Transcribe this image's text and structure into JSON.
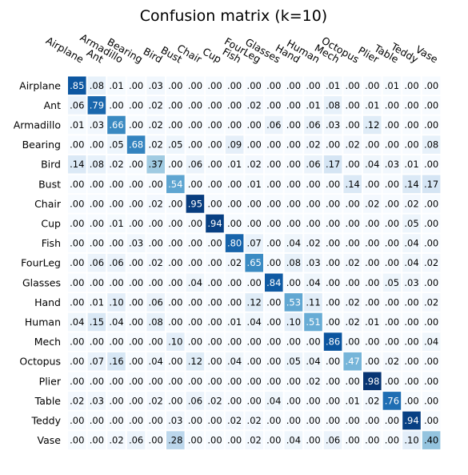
{
  "chart_data": {
    "type": "heatmap",
    "title": "Confusion matrix (k=10)",
    "xlabel": "",
    "ylabel": "",
    "labels": [
      "Airplane",
      "Ant",
      "Armadillo",
      "Bearing",
      "Bird",
      "Bust",
      "Chair",
      "Cup",
      "Fish",
      "FourLeg",
      "Glasses",
      "Hand",
      "Human",
      "Mech",
      "Octopus",
      "Plier",
      "Table",
      "Teddy",
      "Vase"
    ],
    "value_labels": [
      [
        ".85",
        ".08",
        ".01",
        ".00",
        ".03",
        ".00",
        ".00",
        ".00",
        ".00",
        ".00",
        ".00",
        ".00",
        ".00",
        ".01",
        ".00",
        ".00",
        ".01",
        ".00",
        ".00"
      ],
      [
        ".06",
        ".79",
        ".00",
        ".00",
        ".02",
        ".00",
        ".00",
        ".00",
        ".00",
        ".02",
        ".00",
        ".00",
        ".01",
        ".08",
        ".00",
        ".01",
        ".00",
        ".00",
        ".00"
      ],
      [
        ".01",
        ".03",
        ".66",
        ".00",
        ".02",
        ".00",
        ".00",
        ".00",
        ".00",
        ".00",
        ".06",
        ".00",
        ".06",
        ".03",
        ".00",
        ".12",
        ".00",
        ".00",
        ".00"
      ],
      [
        ".00",
        ".00",
        ".05",
        ".68",
        ".02",
        ".05",
        ".00",
        ".00",
        ".09",
        ".00",
        ".00",
        ".00",
        ".02",
        ".00",
        ".02",
        ".00",
        ".00",
        ".00",
        ".08"
      ],
      [
        ".14",
        ".08",
        ".02",
        ".00",
        ".37",
        ".00",
        ".06",
        ".00",
        ".01",
        ".02",
        ".00",
        ".00",
        ".06",
        ".17",
        ".00",
        ".04",
        ".03",
        ".01",
        ".00"
      ],
      [
        ".00",
        ".00",
        ".00",
        ".00",
        ".00",
        ".54",
        ".00",
        ".00",
        ".00",
        ".01",
        ".00",
        ".00",
        ".00",
        ".00",
        ".14",
        ".00",
        ".00",
        ".14",
        ".17"
      ],
      [
        ".00",
        ".00",
        ".00",
        ".00",
        ".02",
        ".00",
        ".95",
        ".00",
        ".00",
        ".00",
        ".00",
        ".00",
        ".00",
        ".00",
        ".00",
        ".02",
        ".00",
        ".02",
        ".00"
      ],
      [
        ".00",
        ".00",
        ".01",
        ".00",
        ".00",
        ".00",
        ".00",
        ".94",
        ".00",
        ".00",
        ".00",
        ".00",
        ".00",
        ".00",
        ".00",
        ".00",
        ".00",
        ".05",
        ".00"
      ],
      [
        ".00",
        ".00",
        ".00",
        ".03",
        ".00",
        ".00",
        ".00",
        ".00",
        ".80",
        ".07",
        ".00",
        ".04",
        ".02",
        ".00",
        ".00",
        ".00",
        ".00",
        ".04",
        ".00"
      ],
      [
        ".00",
        ".06",
        ".06",
        ".00",
        ".02",
        ".00",
        ".00",
        ".00",
        ".02",
        ".65",
        ".00",
        ".08",
        ".03",
        ".00",
        ".02",
        ".00",
        ".00",
        ".04",
        ".02"
      ],
      [
        ".00",
        ".00",
        ".00",
        ".00",
        ".00",
        ".00",
        ".04",
        ".00",
        ".00",
        ".00",
        ".84",
        ".00",
        ".04",
        ".00",
        ".00",
        ".00",
        ".05",
        ".03",
        ".00"
      ],
      [
        ".00",
        ".01",
        ".10",
        ".00",
        ".06",
        ".00",
        ".00",
        ".00",
        ".00",
        ".12",
        ".00",
        ".53",
        ".11",
        ".00",
        ".02",
        ".00",
        ".00",
        ".00",
        ".02"
      ],
      [
        ".04",
        ".15",
        ".04",
        ".00",
        ".08",
        ".00",
        ".00",
        ".00",
        ".01",
        ".04",
        ".00",
        ".10",
        ".51",
        ".00",
        ".02",
        ".01",
        ".00",
        ".00",
        ".00"
      ],
      [
        ".00",
        ".00",
        ".00",
        ".00",
        ".00",
        ".10",
        ".00",
        ".00",
        ".00",
        ".00",
        ".00",
        ".00",
        ".00",
        ".86",
        ".00",
        ".00",
        ".00",
        ".00",
        ".04"
      ],
      [
        ".00",
        ".07",
        ".16",
        ".00",
        ".04",
        ".00",
        ".12",
        ".00",
        ".04",
        ".00",
        ".00",
        ".05",
        ".04",
        ".00",
        ".47",
        ".00",
        ".02",
        ".00",
        ".00"
      ],
      [
        ".00",
        ".00",
        ".00",
        ".00",
        ".00",
        ".00",
        ".00",
        ".00",
        ".00",
        ".00",
        ".00",
        ".00",
        ".02",
        ".00",
        ".00",
        ".98",
        ".00",
        ".00",
        ".00"
      ],
      [
        ".02",
        ".03",
        ".00",
        ".00",
        ".02",
        ".00",
        ".06",
        ".02",
        ".00",
        ".00",
        ".04",
        ".00",
        ".00",
        ".00",
        ".01",
        ".02",
        ".76",
        ".00",
        ".00"
      ],
      [
        ".00",
        ".00",
        ".00",
        ".00",
        ".00",
        ".03",
        ".00",
        ".00",
        ".02",
        ".02",
        ".00",
        ".00",
        ".00",
        ".00",
        ".00",
        ".00",
        ".00",
        ".94",
        ".00"
      ],
      [
        ".00",
        ".00",
        ".02",
        ".06",
        ".00",
        ".28",
        ".00",
        ".00",
        ".00",
        ".02",
        ".00",
        ".04",
        ".00",
        ".06",
        ".00",
        ".00",
        ".00",
        ".10",
        ".40"
      ]
    ],
    "colormap": "Blues",
    "value_range": [
      0,
      1
    ],
    "grid": false,
    "legend": "none",
    "colors": {
      "low": "#f7fbff",
      "mid1": "#deebf7",
      "mid2": "#c6dbef",
      "mid3": "#9ecae1",
      "mid4": "#6baed6",
      "mid5": "#4292c6",
      "mid6": "#2171b5",
      "mid7": "#08519c",
      "high": "#08306b",
      "cell_gap": "#ffffff"
    }
  }
}
